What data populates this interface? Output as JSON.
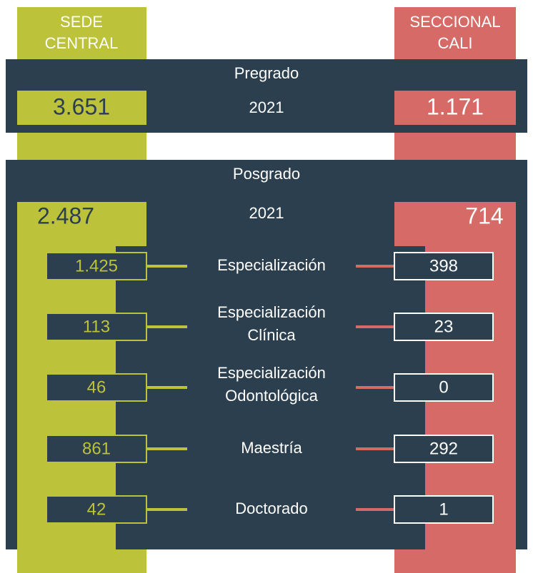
{
  "left_header": [
    "SEDE",
    "CENTRAL"
  ],
  "right_header": [
    "SECCIONAL",
    "CALI"
  ],
  "pregrado": {
    "title": "Pregrado",
    "year": "2021",
    "left": "3.651",
    "right": "1.171"
  },
  "posgrado": {
    "title": "Posgrado",
    "year": "2021",
    "left": "2.487",
    "right": "714",
    "rows": [
      {
        "label": [
          "Especialización"
        ],
        "left": "1.425",
        "right": "398"
      },
      {
        "label": [
          "Especialización",
          "Clínica"
        ],
        "left": "113",
        "right": "23"
      },
      {
        "label": [
          "Especialización",
          "Odontológica"
        ],
        "left": "46",
        "right": "0"
      },
      {
        "label": [
          "Maestría"
        ],
        "left": "861",
        "right": "292"
      },
      {
        "label": [
          "Doctorado"
        ],
        "left": "42",
        "right": "1"
      }
    ]
  }
}
